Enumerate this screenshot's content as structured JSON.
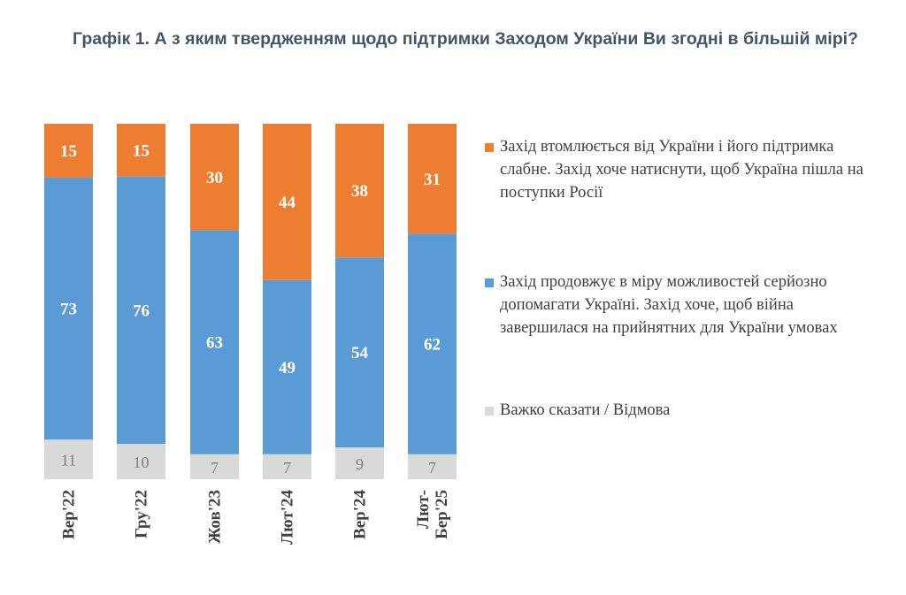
{
  "chart_data": {
    "type": "bar",
    "stacked": true,
    "title": "Графік 1. А з яким твердженням щодо підтримки Заходом України Ви згодні в більшій мірі?",
    "categories": [
      [
        "Вер'22"
      ],
      [
        "Гру'22"
      ],
      [
        "Жов'23"
      ],
      [
        "Лют'24"
      ],
      [
        "Вер'24"
      ],
      [
        "Лют-",
        "Бер'25"
      ]
    ],
    "ylim": [
      0,
      100
    ],
    "legend_position": "right",
    "series": [
      {
        "name": "Захід втомлюється від України і його підтримка слабне. Захід хоче натиснути, щоб Україна пішла на поступки Росії",
        "color": "#ed7d31",
        "values": [
          15,
          15,
          30,
          44,
          38,
          31
        ]
      },
      {
        "name": "Захід продовжує в міру можливостей серйозно допомагати Україні. Захід хоче, щоб війна завершилася на прийнятних для України умовах",
        "color": "#5b9bd5",
        "values": [
          73,
          76,
          63,
          49,
          54,
          62
        ]
      },
      {
        "name": "Важко сказати / Відмова",
        "color": "#d9d9d9",
        "values": [
          11,
          10,
          7,
          7,
          9,
          7
        ]
      }
    ]
  }
}
